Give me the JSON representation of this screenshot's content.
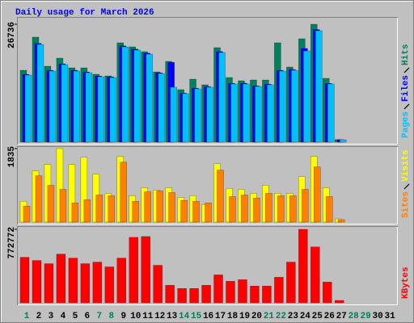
{
  "chart_data": [
    {
      "type": "bar",
      "title": "Daily usage for March 2026",
      "ylim": [
        0,
        26736
      ],
      "yticks": [
        26736
      ],
      "series": [
        {
          "name": "Hits",
          "color": "#00805c",
          "values": [
            16297,
            23805,
            17213,
            19045,
            16847,
            16847,
            15382,
            15016,
            22524,
            21608,
            20509,
            15932,
            18312,
            11903,
            14283,
            13001,
            21425,
            14650,
            13917,
            14100,
            14100,
            22524,
            17030,
            23439,
            26736,
            14466,
            580,
            0,
            0,
            0,
            0
          ]
        },
        {
          "name": "Files",
          "color": "#0000ff",
          "values": [
            15350,
            22380,
            16270,
            17750,
            16280,
            15900,
            14980,
            14800,
            21830,
            21090,
            20160,
            15720,
            18100,
            11100,
            12210,
            12580,
            20530,
            13320,
            13366,
            12760,
            13130,
            16280,
            16460,
            21240,
            25520,
            13320,
            560,
            0,
            0,
            0,
            0
          ]
        },
        {
          "name": "Pages",
          "color": "#00c0ff",
          "values": [
            15198,
            22155,
            16113,
            17578,
            16113,
            15747,
            14831,
            14648,
            21606,
            20873,
            19958,
            15564,
            12451,
            10986,
            12085,
            12451,
            20324,
            13183,
            13183,
            12634,
            13000,
            16113,
            16296,
            20690,
            25268,
            13183,
            549,
            0,
            0,
            0,
            0
          ]
        }
      ]
    },
    {
      "type": "bar",
      "ylim": [
        0,
        1835
      ],
      "yticks": [
        1835
      ],
      "series": [
        {
          "name": "Visits",
          "color": "#ffff00",
          "values": [
            519,
            1277,
            1436,
            1835,
            1436,
            1616,
            1197,
            718,
            1636,
            658,
            858,
            798,
            858,
            618,
            658,
            439,
            1456,
            838,
            818,
            718,
            918,
            718,
            718,
            1137,
            1636,
            858,
            80,
            0,
            0,
            0,
            0
          ]
        },
        {
          "name": "Sites",
          "color": "#ff8000",
          "values": [
            399,
            1157,
            918,
            818,
            479,
            559,
            678,
            658,
            1496,
            519,
            758,
            778,
            738,
            539,
            519,
            479,
            1297,
            638,
            678,
            599,
            718,
            658,
            658,
            818,
            1377,
            638,
            60,
            0,
            0,
            0,
            0
          ]
        }
      ]
    },
    {
      "type": "bar",
      "ylim": [
        0,
        772772
      ],
      "yticks": [
        772772
      ],
      "categories": [
        "1",
        "2",
        "3",
        "4",
        "5",
        "6",
        "7",
        "8",
        "9",
        "10",
        "11",
        "12",
        "13",
        "14",
        "15",
        "16",
        "17",
        "18",
        "19",
        "20",
        "21",
        "22",
        "23",
        "24",
        "25",
        "26",
        "27",
        "28",
        "29",
        "30",
        "31"
      ],
      "category_colors": [
        "#00805c",
        "#000000",
        "#000000",
        "#000000",
        "#000000",
        "#000000",
        "#00805c",
        "#00805c",
        "#000000",
        "#000000",
        "#000000",
        "#000000",
        "#000000",
        "#00805c",
        "#00805c",
        "#000000",
        "#000000",
        "#000000",
        "#000000",
        "#000000",
        "#00805c",
        "#00805c",
        "#000000",
        "#000000",
        "#000000",
        "#000000",
        "#000000",
        "#00805c",
        "#00805c",
        "#000000",
        "#000000"
      ],
      "series": [
        {
          "name": "KBytes",
          "color": "#ff0000",
          "values": [
            478800,
            445200,
            411600,
            512400,
            470400,
            411600,
            428400,
            378000,
            470400,
            688800,
            697200,
            394800,
            184800,
            151200,
            151200,
            184800,
            294000,
            226800,
            243600,
            176400,
            176400,
            268800,
            428400,
            772772,
            588000,
            218400,
            25200,
            0,
            0,
            0,
            0
          ]
        }
      ]
    }
  ]
}
